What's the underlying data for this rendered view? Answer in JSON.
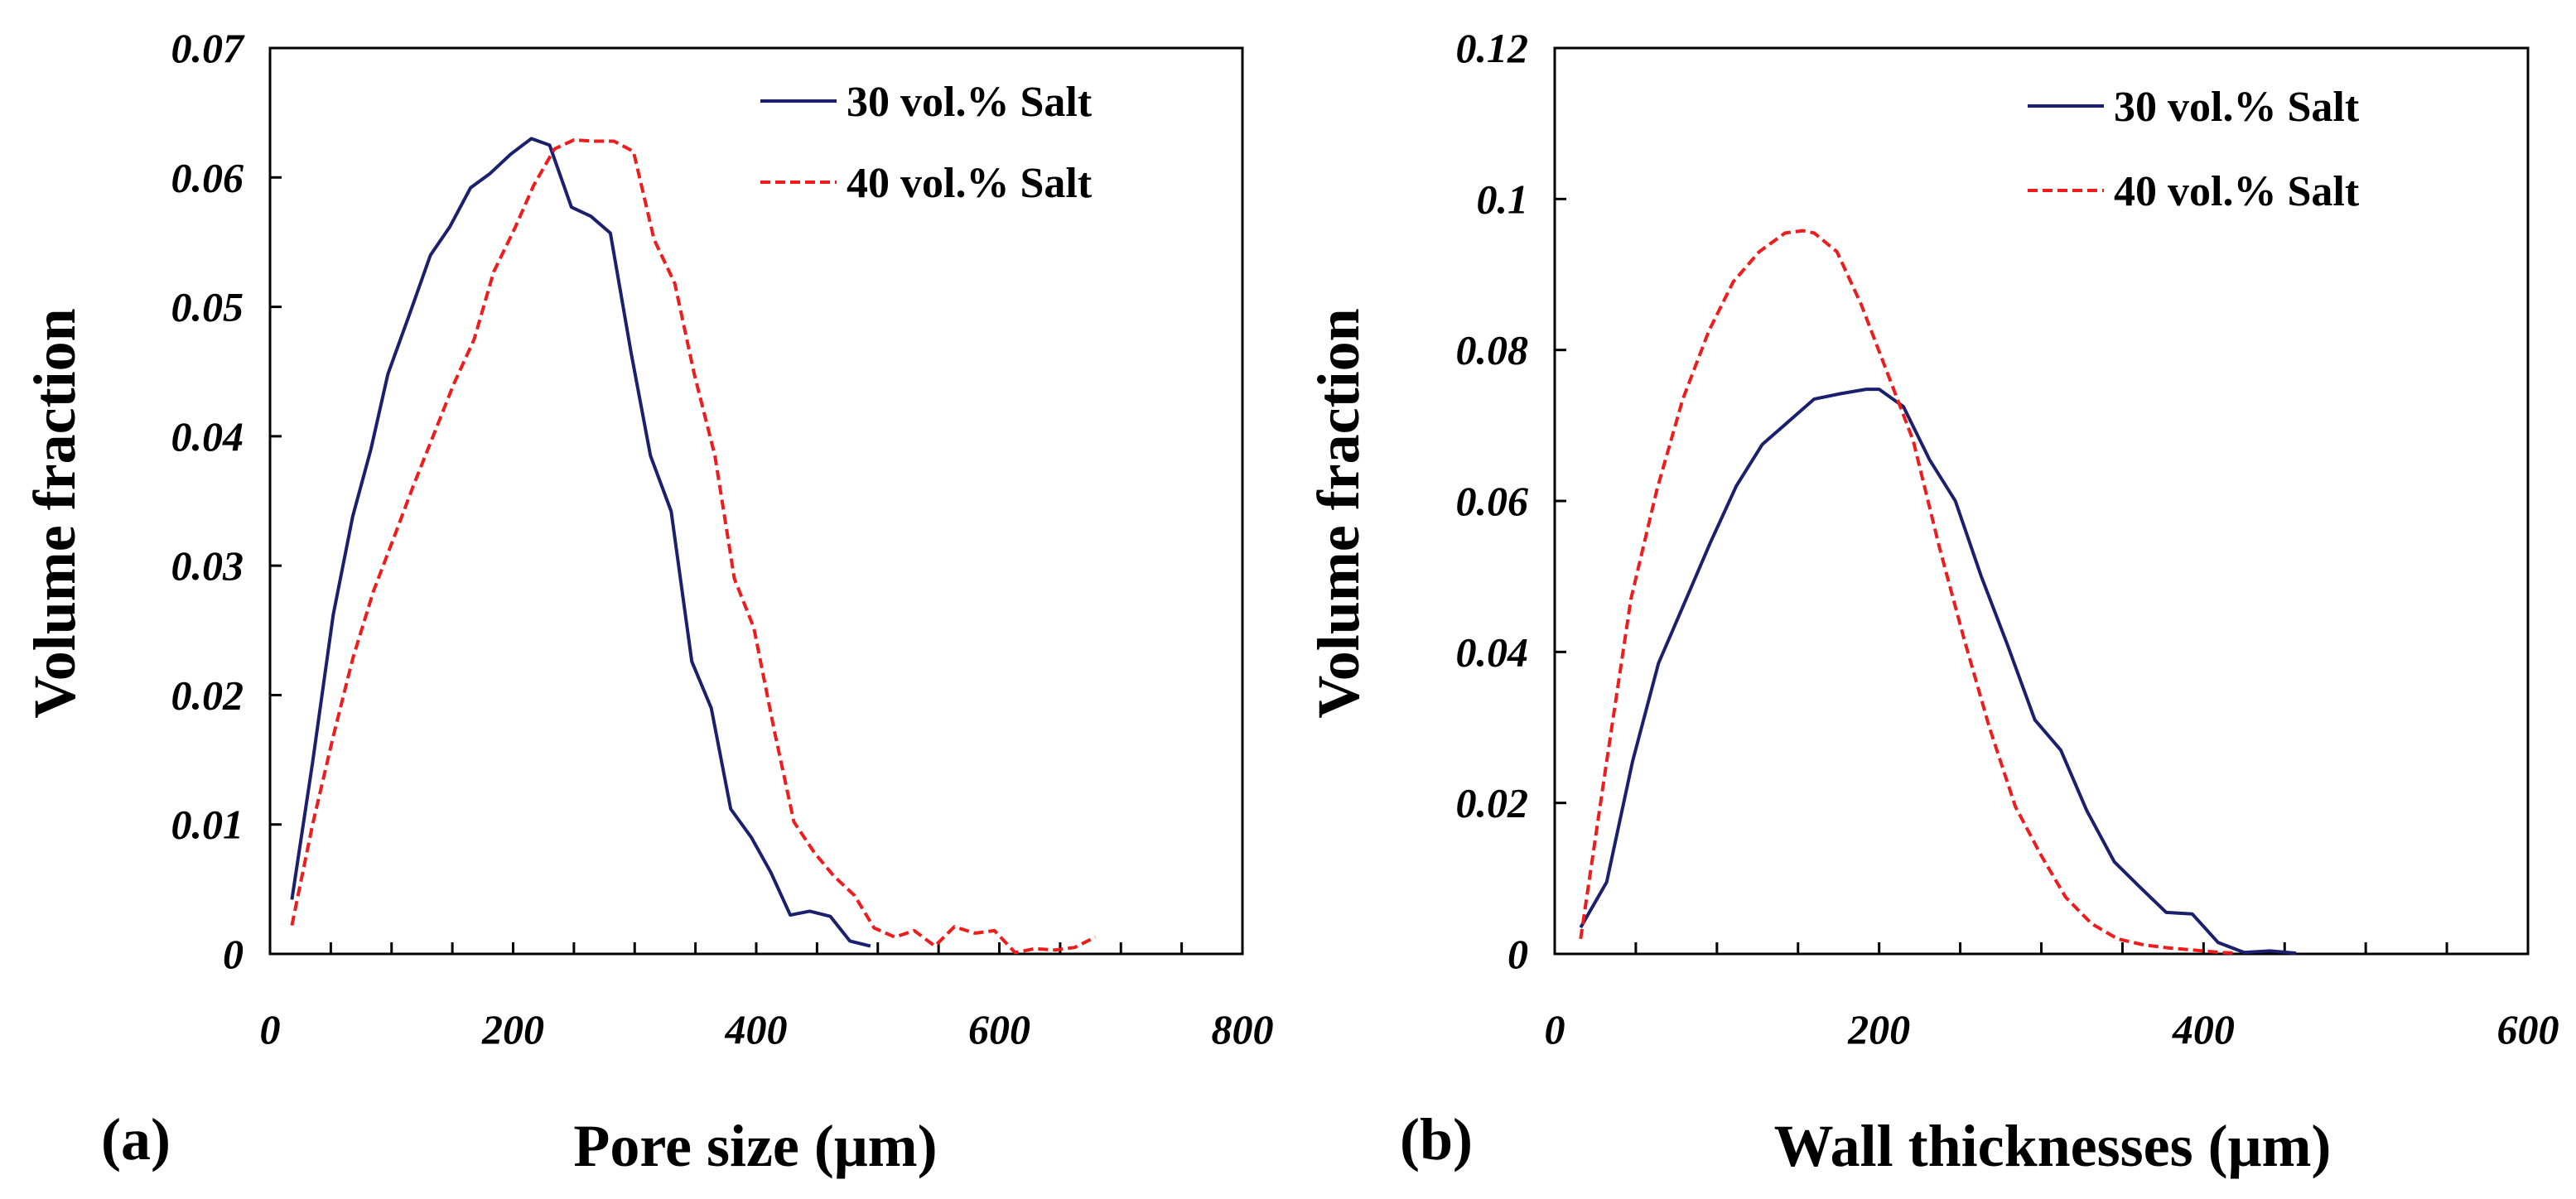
{
  "colors": {
    "series_30": "#1a1f6e",
    "series_40": "#ee1c1c",
    "axes": "#000000"
  },
  "chart_data": [
    {
      "type": "line",
      "panel_label": "(a)",
      "title": "",
      "xlabel": "Pore size (μm)",
      "ylabel": "Volume fraction",
      "xlim": [
        0,
        800
      ],
      "ylim": [
        0,
        0.07
      ],
      "xticks": [
        0,
        200,
        400,
        600,
        800
      ],
      "xtick_labels": [
        "0",
        "200",
        "400",
        "600",
        "800"
      ],
      "yticks": [
        0,
        0.01,
        0.02,
        0.03,
        0.04,
        0.05,
        0.06,
        0.07
      ],
      "ytick_labels": [
        "0",
        "0.01",
        "0.02",
        "0.03",
        "0.04",
        "0.05",
        "0.06",
        "0.07"
      ],
      "x_minor_step": 50,
      "grid": false,
      "legend_position": "top-right",
      "series": [
        {
          "name": "30 vol.% Salt",
          "style": "solid",
          "color_key": "series_30",
          "x": [
            18,
            35,
            52,
            68,
            83,
            97,
            115,
            132,
            148,
            165,
            181,
            198,
            215,
            230,
            248,
            264,
            280,
            297,
            313,
            330,
            347,
            363,
            379,
            396,
            412,
            428,
            444,
            461,
            477,
            494
          ],
          "y": [
            0.0042,
            0.0148,
            0.0262,
            0.0338,
            0.039,
            0.0448,
            0.0495,
            0.054,
            0.0562,
            0.0592,
            0.0603,
            0.0618,
            0.063,
            0.0625,
            0.0577,
            0.057,
            0.0557,
            0.0465,
            0.0385,
            0.0342,
            0.0226,
            0.019,
            0.0112,
            0.009,
            0.0063,
            0.003,
            0.0033,
            0.0029,
            0.001,
            0.0006
          ]
        },
        {
          "name": "40 vol.% Salt",
          "style": "dashed",
          "color_key": "series_40",
          "x": [
            18,
            35,
            52,
            68,
            85,
            102,
            118,
            135,
            151,
            168,
            184,
            201,
            217,
            234,
            250,
            267,
            283,
            299,
            316,
            333,
            349,
            366,
            382,
            398,
            415,
            431,
            448,
            464,
            481,
            497,
            514,
            530,
            547,
            563,
            580,
            596,
            613,
            629,
            646,
            662,
            679
          ],
          "y": [
            0.0022,
            0.01,
            0.0168,
            0.0228,
            0.028,
            0.0322,
            0.0362,
            0.0402,
            0.044,
            0.0475,
            0.0527,
            0.056,
            0.0594,
            0.0622,
            0.0629,
            0.0628,
            0.0628,
            0.062,
            0.0552,
            0.0518,
            0.0448,
            0.0385,
            0.029,
            0.0252,
            0.0172,
            0.0102,
            0.0078,
            0.006,
            0.0045,
            0.002,
            0.0013,
            0.0018,
            0.0006,
            0.0021,
            0.0016,
            0.0018,
            0.0001,
            0.0004,
            0.0003,
            0.0005,
            0.0013
          ]
        }
      ]
    },
    {
      "type": "line",
      "panel_label": "(b)",
      "title": "",
      "xlabel": "Wall thicknesses (μm)",
      "ylabel": "Volume fraction",
      "xlim": [
        0,
        600
      ],
      "ylim": [
        0,
        0.12
      ],
      "xticks": [
        0,
        200,
        400,
        600
      ],
      "xtick_labels": [
        "0",
        "200",
        "400",
        "600"
      ],
      "yticks": [
        0,
        0.02,
        0.04,
        0.06,
        0.08,
        0.1,
        0.12
      ],
      "ytick_labels": [
        "0",
        "0.02",
        "0.04",
        "0.06",
        "0.08",
        "0.1",
        "0.12"
      ],
      "x_minor_step": 50,
      "grid": false,
      "legend_position": "top-right",
      "series": [
        {
          "name": "30 vol.% Salt",
          "style": "solid",
          "color_key": "series_30",
          "x": [
            16,
            32,
            48,
            64,
            80,
            96,
            112,
            128,
            144,
            160,
            176,
            192,
            200,
            215,
            231,
            247,
            263,
            279,
            296,
            312,
            328,
            345,
            361,
            377,
            393,
            409,
            425,
            441,
            457
          ],
          "y": [
            0.0035,
            0.0095,
            0.0255,
            0.0385,
            0.0465,
            0.0545,
            0.062,
            0.0675,
            0.0705,
            0.0735,
            0.0742,
            0.0748,
            0.0748,
            0.0725,
            0.0655,
            0.06,
            0.05,
            0.041,
            0.031,
            0.027,
            0.019,
            0.0122,
            0.0088,
            0.0055,
            0.0053,
            0.0015,
            0.0002,
            0.0004,
            0.0001
          ]
        },
        {
          "name": "40 vol.% Salt",
          "style": "dashed",
          "color_key": "series_40",
          "x": [
            16,
            31,
            47,
            63,
            79,
            95,
            110,
            126,
            142,
            153,
            160,
            174,
            189,
            205,
            221,
            237,
            252,
            268,
            284,
            300,
            315,
            331,
            347,
            363,
            378,
            394,
            410,
            420
          ],
          "y": [
            0.002,
            0.024,
            0.047,
            0.0615,
            0.0735,
            0.0825,
            0.089,
            0.093,
            0.0955,
            0.0958,
            0.0955,
            0.093,
            0.086,
            0.077,
            0.068,
            0.054,
            0.042,
            0.03,
            0.0195,
            0.013,
            0.0075,
            0.004,
            0.002,
            0.0012,
            0.0008,
            0.0005,
            0.0002,
            0.0001
          ]
        }
      ]
    }
  ]
}
